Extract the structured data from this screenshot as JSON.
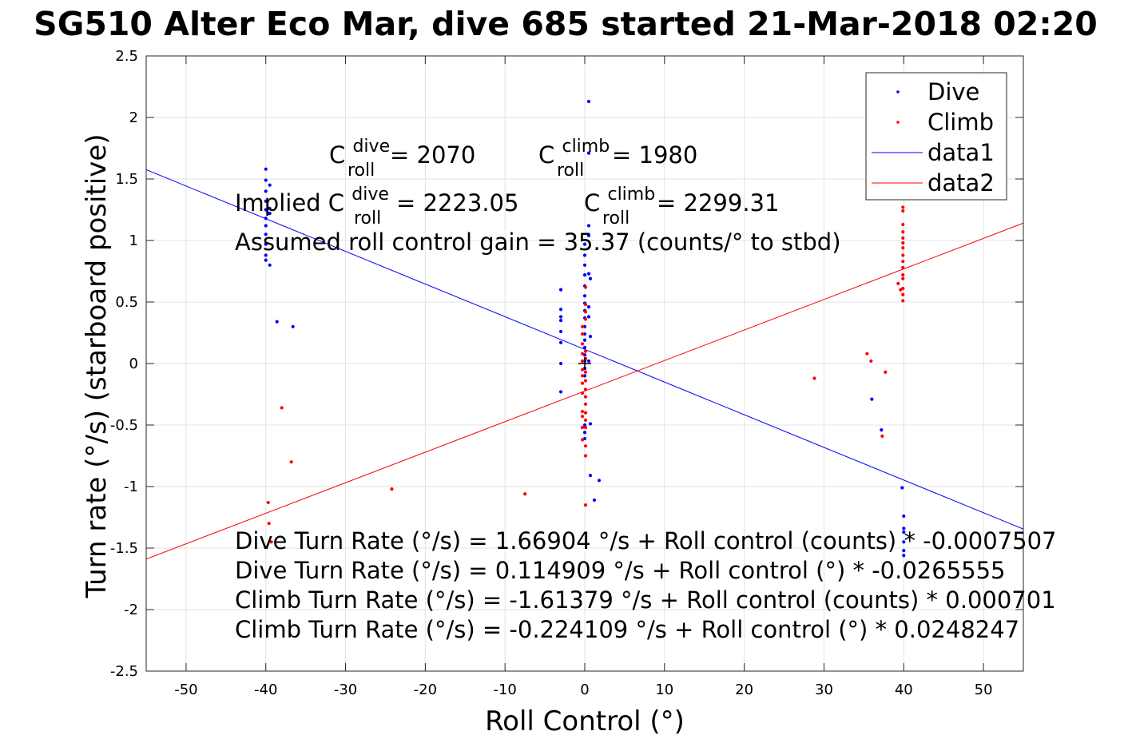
{
  "chart_data": {
    "type": "scatter",
    "title": "SG510 Alter Eco Mar, dive 685 started 21-Mar-2018 02:20",
    "xlabel": "Roll Control (°)",
    "ylabel": "Turn rate (°/s) (starboard positive)",
    "xlim": [
      -55,
      55
    ],
    "ylim": [
      -2.5,
      2.5
    ],
    "xticks": [
      -50,
      -40,
      -30,
      -20,
      -10,
      0,
      10,
      20,
      30,
      40,
      50
    ],
    "xtick_labels": [
      "-50",
      "-40",
      "-30",
      "-20",
      "-10",
      "0",
      "10",
      "20",
      "30",
      "40",
      "50"
    ],
    "yticks": [
      -2.5,
      -2,
      -1.5,
      -1,
      -0.5,
      0,
      0.5,
      1,
      1.5,
      2,
      2.5
    ],
    "ytick_labels": [
      "-2.5",
      "-2",
      "-1.5",
      "-1",
      "-0.5",
      "0",
      "0.5",
      "1",
      "1.5",
      "2",
      "2.5"
    ],
    "grid": true,
    "legend_position": "top-right",
    "legend": [
      "Dive",
      "Climb",
      "data1",
      "data2"
    ],
    "colors": {
      "dive": "#0000ff",
      "climb": "#ff0000",
      "marker": "#000000"
    },
    "series": [
      {
        "name": "Dive",
        "kind": "points",
        "x": [
          -40,
          -40,
          -40,
          -40,
          -40,
          -40,
          -40,
          -40,
          -40,
          -40,
          -40,
          -39.5,
          -39.5,
          -39.5,
          -39.5,
          -38.6,
          -36.6,
          -3,
          -3,
          -3,
          -3,
          -3,
          -3,
          -3,
          -3,
          0,
          0,
          0,
          0,
          0,
          0,
          0,
          0,
          0,
          0,
          0,
          0,
          0,
          0,
          0,
          0,
          0,
          0,
          0,
          0,
          0.5,
          0.5,
          0.5,
          0.5,
          0.5,
          0.5,
          0.5,
          0.5,
          0.7,
          0.7,
          0.7,
          0.7,
          1.8,
          1.2,
          36,
          37.2,
          39.8,
          40,
          40,
          40,
          40,
          40,
          40
        ],
        "y": [
          1.58,
          1.49,
          1.4,
          1.32,
          1.25,
          1.18,
          1.12,
          1.05,
          0.97,
          0.88,
          0.84,
          1.45,
          1.26,
          1.22,
          0.8,
          0.34,
          0.3,
          0.6,
          0.44,
          0.38,
          0.35,
          0.26,
          0.17,
          0.0,
          -0.23,
          0.97,
          0.88,
          0.8,
          0.72,
          0.63,
          0.55,
          0.49,
          0.43,
          0.37,
          0.3,
          0.24,
          0.19,
          0.13,
          0.07,
          0.02,
          -0.04,
          -0.1,
          -0.5,
          -0.56,
          -0.61,
          2.13,
          1.71,
          1.12,
          1.04,
          0.73,
          0.46,
          0.38,
          0.02,
          0.69,
          0.22,
          -0.49,
          -0.91,
          -0.95,
          -1.11,
          -0.29,
          -0.54,
          -1.01,
          -1.24,
          -1.34,
          -1.37,
          -1.45,
          -1.52,
          -1.56
        ]
      },
      {
        "name": "Climb",
        "kind": "points",
        "x": [
          -38.0,
          -36.8,
          -39.7,
          -39.6,
          -39.3,
          -24.2,
          -7.5,
          -0.3,
          -0.3,
          -0.3,
          -0.3,
          -0.3,
          -0.3,
          -0.3,
          -0.3,
          -0.3,
          -0.3,
          -0.3,
          -0.3,
          -0.3,
          0.1,
          0.1,
          0.1,
          0.1,
          0.1,
          0.1,
          0.1,
          0.1,
          0.1,
          0.1,
          0.1,
          0.1,
          0.1,
          0.1,
          0.1,
          0.1,
          0.1,
          28.8,
          35.4,
          35.9,
          37.3,
          37.7,
          39.3,
          39.6,
          39.9,
          39.9,
          39.9,
          39.9,
          39.9,
          39.9,
          39.9,
          39.9,
          39.9,
          39.9,
          39.9,
          39.9,
          39.9,
          39.9,
          39.9
        ],
        "y": [
          -0.36,
          -0.8,
          -1.13,
          -1.3,
          -1.45,
          -1.02,
          -1.06,
          0.3,
          0.24,
          0.16,
          0.08,
          0.02,
          -0.05,
          -0.1,
          -0.16,
          -0.24,
          -0.39,
          -0.43,
          -0.52,
          -0.62,
          0.62,
          0.48,
          0.42,
          0.36,
          0.1,
          0.04,
          -0.07,
          -0.14,
          -0.21,
          -0.27,
          -0.33,
          -0.4,
          -0.46,
          -0.52,
          -0.67,
          -0.75,
          -1.15,
          -0.12,
          0.08,
          0.02,
          -0.59,
          -0.07,
          0.65,
          0.6,
          1.27,
          1.24,
          1.13,
          1.07,
          1.02,
          0.98,
          0.94,
          0.88,
          0.83,
          0.78,
          0.72,
          0.69,
          0.61,
          0.56,
          0.51
        ]
      },
      {
        "name": "data1",
        "kind": "line",
        "intercept": 0.114909,
        "slope": -0.0265555
      },
      {
        "name": "data2",
        "kind": "line",
        "intercept": -0.224109,
        "slope": 0.0248247
      }
    ],
    "origin_marker": {
      "x": 0,
      "y": 0,
      "symbol": "+"
    },
    "annotations": {
      "c_dive_base": "C",
      "c_dive_sup": "dive",
      "c_dive_sub": "roll",
      "c_dive_value": " = 2070",
      "c_climb_base": "C",
      "c_climb_sup": "climb",
      "c_climb_sub": "roll",
      "c_climb_value": " = 1980",
      "implied_prefix": "Implied C",
      "implied_dive_sup": "dive",
      "implied_dive_sub": "roll",
      "implied_dive_value": " = 2223.05",
      "implied_climb_base": "C",
      "implied_climb_sup": "climb",
      "implied_climb_sub": "roll",
      "implied_climb_value": " = 2299.31",
      "gain": "Assumed roll control gain = 35.37 (counts/° to stbd)",
      "eq1": "Dive Turn Rate (°/s) = 1.66904 °/s + Roll control (counts) * -0.0007507",
      "eq2": "Dive Turn Rate (°/s) = 0.114909 °/s + Roll control (°) * -0.0265555",
      "eq3": "Climb Turn Rate (°/s) = -1.61379 °/s + Roll control (counts) * 0.000701",
      "eq4": "Climb Turn Rate (°/s) = -0.224109 °/s + Roll control (°) * 0.0248247"
    }
  }
}
